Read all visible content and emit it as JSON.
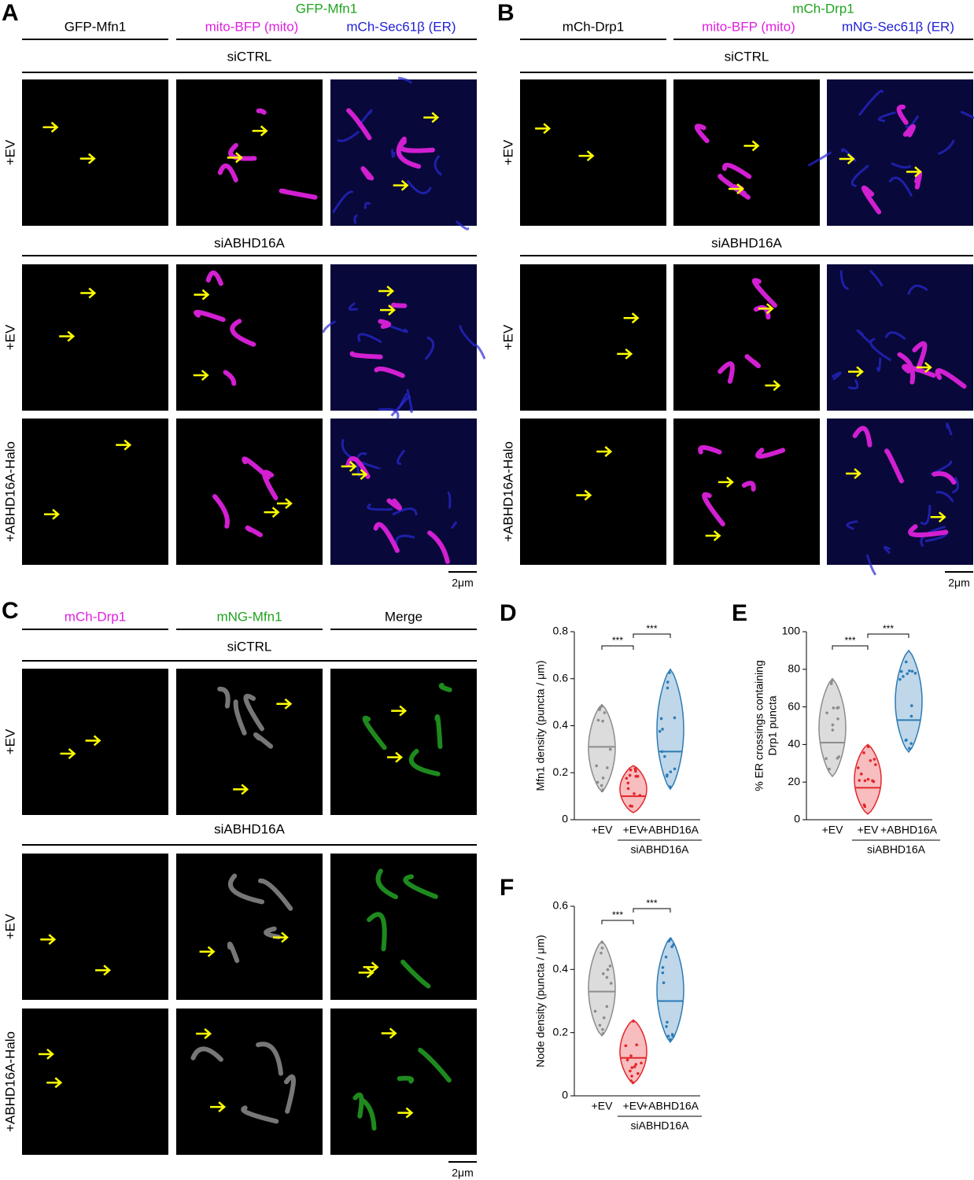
{
  "panels": {
    "A": {
      "label": "A",
      "col1": "GFP-Mfn1",
      "merge_top": "GFP-Mfn1",
      "merge_mito": "mito-BFP (mito)",
      "merge_er": "mCh-Sec61β (ER)",
      "group1": "siCTRL",
      "group2": "siABHD16A",
      "rows": [
        "+EV",
        "+EV",
        "+ABHD16A-Halo"
      ],
      "scale": "2μm"
    },
    "B": {
      "label": "B",
      "col1": "mCh-Drp1",
      "merge_top": "mCh-Drp1",
      "merge_mito": "mito-BFP (mito)",
      "merge_er": "mNG-Sec61β (ER)",
      "group1": "siCTRL",
      "group2": "siABHD16A",
      "rows": [
        "+EV",
        "+EV",
        "+ABHD16A-Halo"
      ],
      "scale": "2μm"
    },
    "C": {
      "label": "C",
      "cols": [
        "mCh-Drp1",
        "mNG-Mfn1",
        "Merge"
      ],
      "group1": "siCTRL",
      "group2": "siABHD16A",
      "rows": [
        "+EV",
        "+EV",
        "+ABHD16A-Halo"
      ],
      "scale": "2μm"
    }
  },
  "charts": [
    {
      "label": "D",
      "type": "violin",
      "ylabel": [
        "Mfn1 density (puncta / μm)"
      ],
      "categories": [
        "+EV",
        "+EV",
        "+ABHD16A"
      ],
      "group": "siABHD16A",
      "significance": [
        "***",
        "***"
      ],
      "ylim": [
        0,
        0.8
      ],
      "yticks": [
        0,
        0.2,
        0.4,
        0.6,
        0.8
      ],
      "colors": [
        "#8c8c8c",
        "#e3262b",
        "#2c7bb6"
      ],
      "mins": [
        0.12,
        0.03,
        0.13
      ],
      "maxs": [
        0.49,
        0.23,
        0.64
      ],
      "medians": [
        0.31,
        0.1,
        0.29
      ]
    },
    {
      "label": "E",
      "type": "violin",
      "ylabel": [
        "% ER crossings containing",
        "Drp1 puncta"
      ],
      "categories": [
        "+EV",
        "+EV",
        "+ABHD16A"
      ],
      "group": "siABHD16A",
      "significance": [
        "***",
        "***"
      ],
      "ylim": [
        0,
        100
      ],
      "yticks": [
        0,
        20,
        40,
        60,
        80,
        100
      ],
      "colors": [
        "#8c8c8c",
        "#e3262b",
        "#2c7bb6"
      ],
      "mins": [
        23,
        3,
        36
      ],
      "maxs": [
        75,
        40,
        90
      ],
      "medians": [
        41,
        17,
        53
      ]
    },
    {
      "label": "F",
      "type": "violin",
      "ylabel": [
        "Node density (puncta / μm)"
      ],
      "categories": [
        "+EV",
        "+EV",
        "+ABHD16A"
      ],
      "group": "siABHD16A",
      "significance": [
        "***",
        "***"
      ],
      "ylim": [
        0,
        0.6
      ],
      "yticks": [
        0,
        0.2,
        0.4,
        0.6
      ],
      "colors": [
        "#8c8c8c",
        "#e3262b",
        "#2c7bb6"
      ],
      "mins": [
        0.19,
        0.04,
        0.17
      ],
      "maxs": [
        0.49,
        0.24,
        0.5
      ],
      "medians": [
        0.33,
        0.12,
        0.3
      ]
    }
  ]
}
